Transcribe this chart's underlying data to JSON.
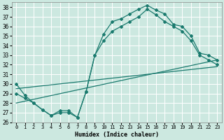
{
  "xlabel": "Humidex (Indice chaleur)",
  "background_color": "#cce8e0",
  "grid_color": "#ffffff",
  "line_color": "#1a7a6e",
  "xlim": [
    -0.5,
    23.5
  ],
  "ylim": [
    26,
    38.5
  ],
  "xticks": [
    0,
    1,
    2,
    3,
    4,
    5,
    6,
    7,
    8,
    9,
    10,
    11,
    12,
    13,
    14,
    15,
    16,
    17,
    18,
    19,
    20,
    21,
    22,
    23
  ],
  "yticks": [
    26,
    27,
    28,
    29,
    30,
    31,
    32,
    33,
    34,
    35,
    36,
    37,
    38
  ],
  "curve1_x": [
    0,
    1,
    2,
    3,
    4,
    5,
    6,
    7,
    8,
    9,
    10,
    11,
    12,
    13,
    14,
    15,
    16,
    17,
    18,
    19,
    20,
    21,
    22,
    23
  ],
  "curve1_y": [
    30.0,
    28.8,
    28.0,
    27.3,
    26.7,
    27.2,
    27.2,
    26.5,
    29.2,
    33.0,
    35.2,
    36.5,
    36.8,
    37.3,
    37.8,
    38.2,
    37.7,
    37.3,
    36.2,
    36.0,
    35.0,
    33.2,
    33.0,
    32.5
  ],
  "curve2_x": [
    0,
    1,
    2,
    3,
    4,
    5,
    6,
    7,
    8,
    9,
    10,
    11,
    12,
    13,
    14,
    15,
    16,
    17,
    18,
    19,
    20,
    21,
    22,
    23
  ],
  "curve2_y": [
    29.0,
    28.5,
    28.0,
    27.3,
    26.7,
    27.0,
    27.0,
    26.5,
    29.2,
    33.0,
    34.5,
    35.5,
    36.0,
    36.5,
    37.0,
    37.8,
    37.2,
    36.5,
    36.0,
    35.5,
    34.5,
    33.0,
    32.5,
    32.0
  ],
  "line1_x": [
    0,
    23
  ],
  "line1_y": [
    28.0,
    32.5
  ],
  "line2_x": [
    0,
    23
  ],
  "line2_y": [
    29.5,
    31.8
  ]
}
